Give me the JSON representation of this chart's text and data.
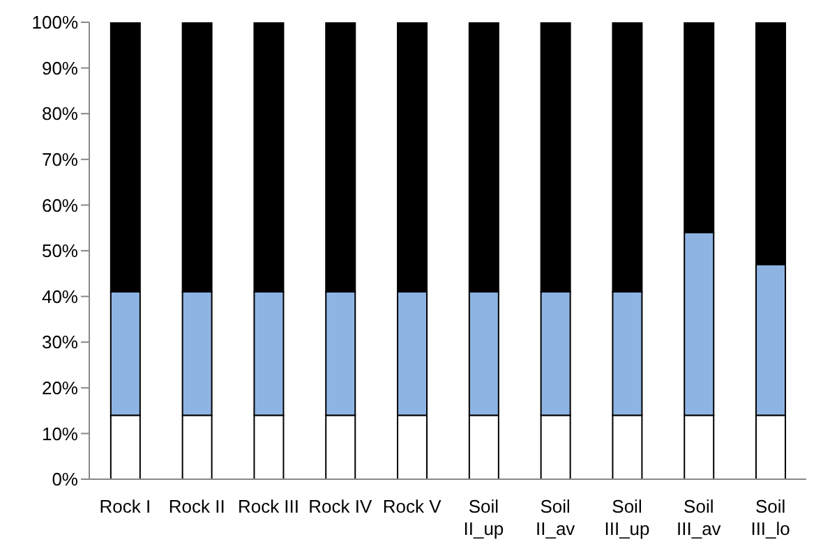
{
  "chart_data": {
    "type": "bar",
    "stacked": true,
    "categories": [
      "Rock I",
      "Rock II",
      "Rock III",
      "Rock IV",
      "Rock V",
      "Soil\nII_up",
      "Soil\nII_av",
      "Soil\nIII_up",
      "Soil\nIII_av",
      "Soil\nIII_lo"
    ],
    "series": [
      {
        "color": "#ffffff",
        "values": [
          14,
          14,
          14,
          14,
          14,
          14,
          14,
          14,
          14,
          14
        ]
      },
      {
        "color": "#8eb4e3",
        "values": [
          27,
          27,
          27,
          27,
          27,
          27,
          27,
          27,
          40,
          33
        ]
      },
      {
        "color": "#000000",
        "values": [
          59,
          59,
          59,
          59,
          59,
          59,
          59,
          59,
          46,
          53
        ]
      }
    ],
    "ylim": [
      0,
      100
    ],
    "yticks": [
      {
        "value": 0,
        "label": "0%"
      },
      {
        "value": 10,
        "label": "10%"
      },
      {
        "value": 20,
        "label": "20%"
      },
      {
        "value": 30,
        "label": "30%"
      },
      {
        "value": 40,
        "label": "40%"
      },
      {
        "value": 50,
        "label": "50%"
      },
      {
        "value": 60,
        "label": "60%"
      },
      {
        "value": 70,
        "label": "70%"
      },
      {
        "value": 80,
        "label": "80%"
      },
      {
        "value": 90,
        "label": "90%"
      },
      {
        "value": 100,
        "label": "100%"
      }
    ]
  }
}
